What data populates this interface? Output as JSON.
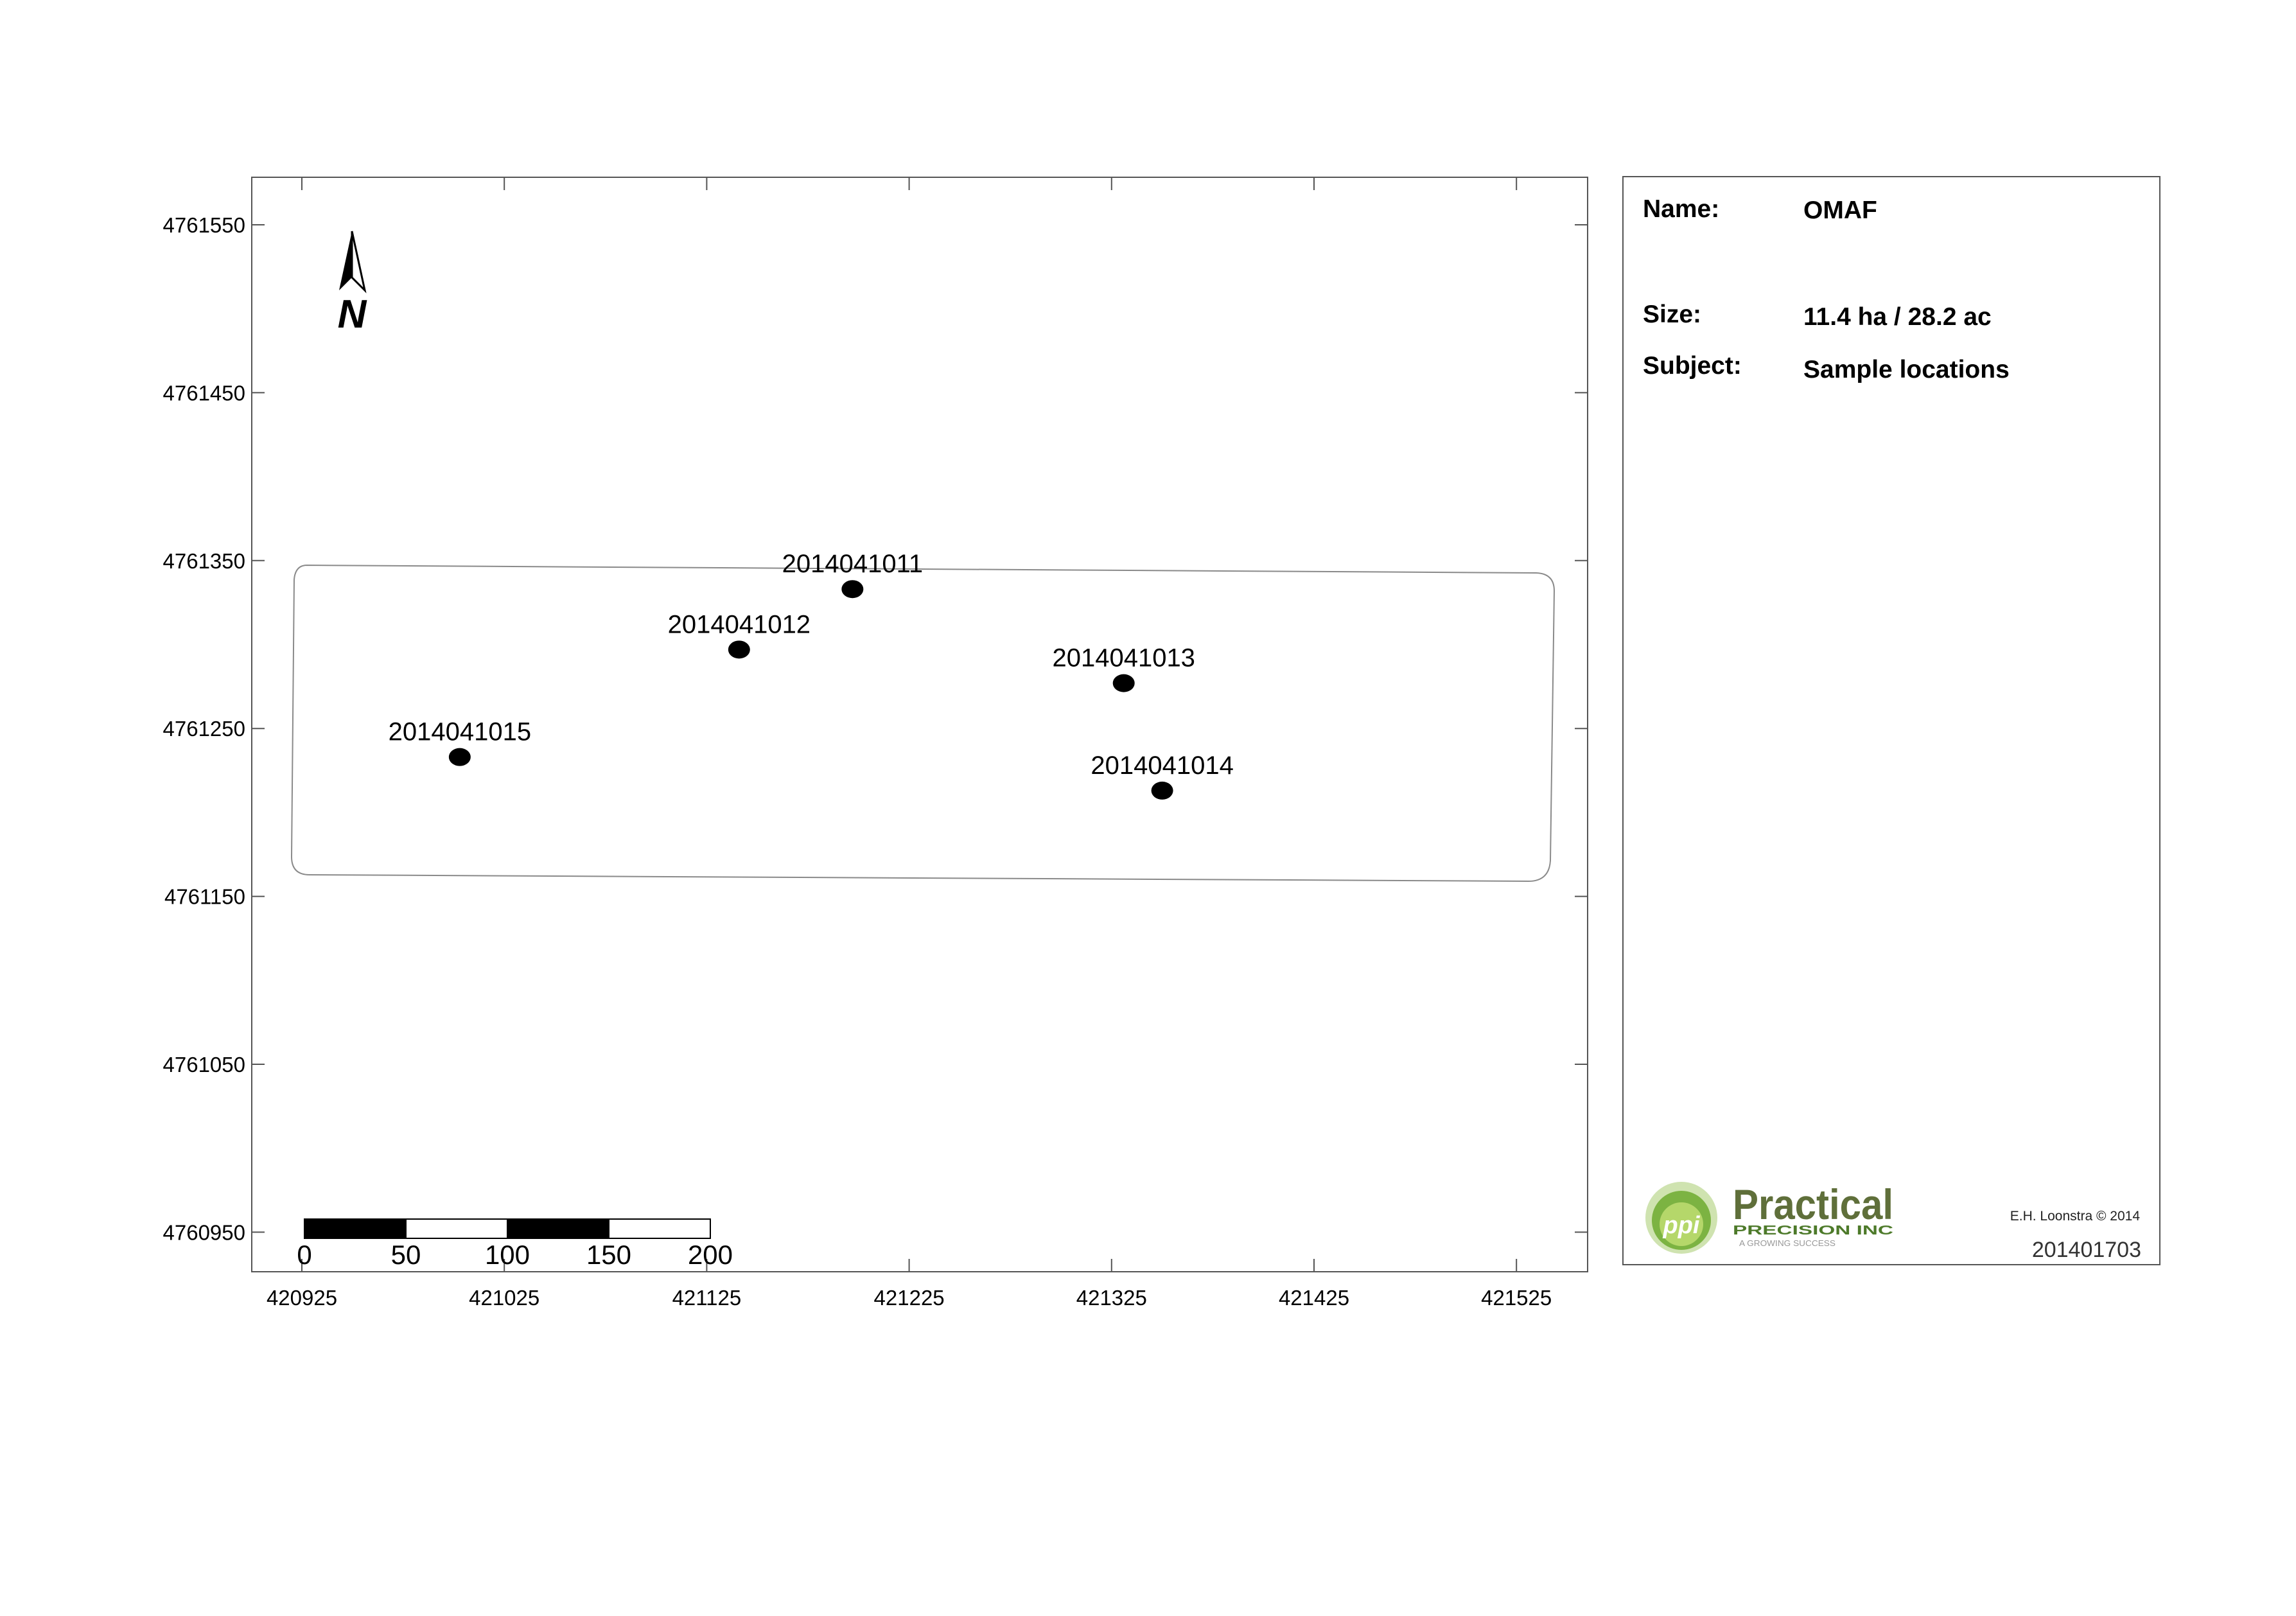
{
  "map": {
    "north_label": "N",
    "y_ticks": [
      "4761550",
      "4761450",
      "4761350",
      "4761250",
      "4761150",
      "4761050",
      "4760950"
    ],
    "x_ticks": [
      "420925",
      "421025",
      "421125",
      "421225",
      "421325",
      "421425",
      "421525"
    ],
    "scale_bar_labels": [
      "0",
      "50",
      "100",
      "150",
      "200"
    ],
    "sample_points": [
      {
        "id": "2014041011",
        "easting": 421197,
        "northing": 4761333
      },
      {
        "id": "2014041012",
        "easting": 421141,
        "northing": 4761297
      },
      {
        "id": "2014041013",
        "easting": 421331,
        "northing": 4761277
      },
      {
        "id": "2014041014",
        "easting": 421350,
        "northing": 4761213
      },
      {
        "id": "2014041015",
        "easting": 421003,
        "northing": 4761233
      }
    ]
  },
  "info": {
    "name_label": "Name:",
    "name_value": "OMAF",
    "size_label": "Size:",
    "size_value": "11.4 ha / 28.2 ac",
    "subject_label": "Subject:",
    "subject_value": "Sample locations",
    "logo_main": "Practical",
    "logo_sub": "PRECISION INC",
    "logo_tagline": "A GROWING SUCCESS",
    "logo_mark": "ppi",
    "credit": "E.H. Loonstra © 2014",
    "job_number": "201401703",
    "logo_colors": {
      "green": "#7cb342",
      "dark_green": "#2e7d32",
      "grey": "#555555"
    }
  }
}
